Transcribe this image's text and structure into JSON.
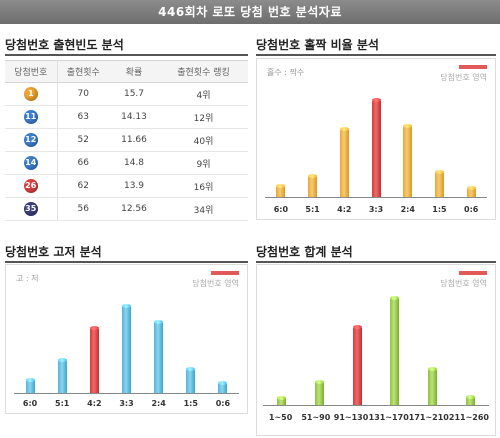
{
  "banner": {
    "title": "446회차 로또 당첨 번호 분석자료"
  },
  "sections": {
    "frequency": "당첨번호 출현빈도 분석",
    "odd_even": "당첨번호 홀짝 비율 분석",
    "high_low": "당첨번호 고저 분석",
    "sum": "당첨번호 합계 분석"
  },
  "table": {
    "headers": [
      "당첨번호",
      "출현횟수",
      "확률",
      "출현횟수 랭킹"
    ],
    "rows": [
      {
        "ball": "1",
        "color": "#f0a42f",
        "count": "70",
        "prob": "15.7",
        "rank": "4위"
      },
      {
        "ball": "11",
        "color": "#3b7fcf",
        "count": "63",
        "prob": "14.13",
        "rank": "12위"
      },
      {
        "ball": "12",
        "color": "#3b7fcf",
        "count": "52",
        "prob": "11.66",
        "rank": "40위"
      },
      {
        "ball": "14",
        "color": "#3b7fcf",
        "count": "66",
        "prob": "14.8",
        "rank": "9위"
      },
      {
        "ball": "26",
        "color": "#d94242",
        "count": "62",
        "prob": "13.9",
        "rank": "16위"
      },
      {
        "ball": "35",
        "color": "#3a3f7c",
        "count": "56",
        "prob": "12.56",
        "rank": "34위"
      }
    ]
  },
  "legend_label": "당첨번호 영역",
  "chart_data": [
    {
      "type": "bar",
      "name": "odd_even",
      "note": "홀수 : 짝수",
      "categories": [
        "6:0",
        "5:1",
        "4:2",
        "3:3",
        "2:4",
        "1:5",
        "0:6"
      ],
      "values": [
        8,
        17,
        56,
        80,
        58,
        20,
        7
      ],
      "highlight_index": 3,
      "color": "#f0b446",
      "highlight_color": "#e05a5a"
    },
    {
      "type": "bar",
      "name": "high_low",
      "note": "고 : 저",
      "categories": [
        "6:0",
        "5:1",
        "4:2",
        "3:3",
        "2:4",
        "1:5",
        "0:6"
      ],
      "values": [
        10,
        26,
        52,
        70,
        57,
        19,
        7
      ],
      "highlight_index": 2,
      "color": "#5fc0e4",
      "highlight_color": "#e05a5a"
    },
    {
      "type": "bar",
      "name": "sum",
      "note": "",
      "categories": [
        "1~50",
        "51~90",
        "91~130",
        "131~170",
        "171~210",
        "211~260"
      ],
      "values": [
        5,
        20,
        70,
        96,
        32,
        6
      ],
      "highlight_index": 2,
      "color": "#9ccc45",
      "highlight_color": "#e05a5a"
    }
  ]
}
